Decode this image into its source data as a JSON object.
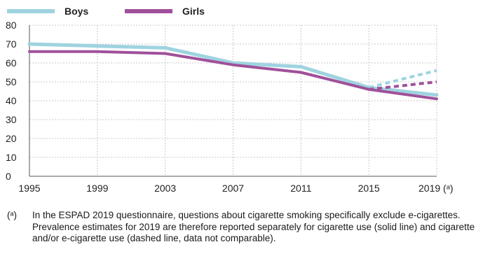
{
  "chart_data": {
    "type": "line",
    "x": [
      "1995",
      "1999",
      "2003",
      "2007",
      "2011",
      "2015",
      "2019 (ᵃ)"
    ],
    "ylim": [
      0,
      80
    ],
    "yticks": [
      0,
      10,
      20,
      30,
      40,
      50,
      60,
      70,
      80
    ],
    "grid": true,
    "legend_placement": "top-left",
    "series": [
      {
        "name": "Boys",
        "color": "#9fd3e0",
        "values": [
          70,
          69,
          68,
          60,
          58,
          47,
          43
        ],
        "dashed_extension": {
          "from": "2015",
          "to": "2019 (ᵃ)",
          "values": [
            47,
            56
          ]
        }
      },
      {
        "name": "Girls",
        "color": "#a0509a",
        "values": [
          66,
          66,
          65,
          59,
          55,
          46,
          41
        ],
        "dashed_extension": {
          "from": "2015",
          "to": "2019 (ᵃ)",
          "values": [
            46,
            50
          ]
        }
      }
    ]
  },
  "footnote": {
    "mark": "(ᵃ)",
    "text": "In the ESPAD 2019 questionnaire, questions about cigarette smoking specifically exclude e-cigarettes. Prevalence estimates for 2019 are therefore reported separately for cigarette use (solid line) and cigarette and/or e-cigarette use (dashed line, data not comparable)."
  }
}
